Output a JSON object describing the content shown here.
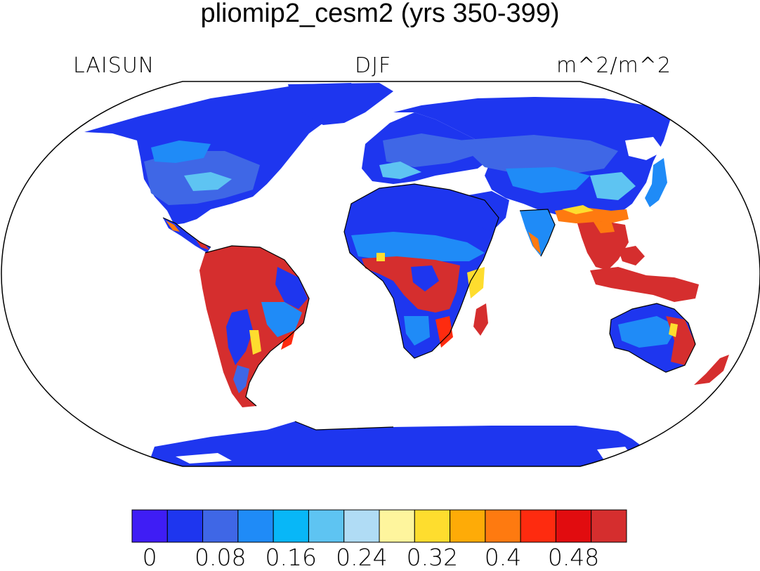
{
  "title": "pliomip2_cesm2 (yrs 350-399)",
  "left_label": "LAISUN",
  "center_label": "DJF",
  "right_label": "m^2/m^2",
  "colorbar": {
    "colors": [
      "#3f1df5",
      "#1e36ef",
      "#3f67e6",
      "#1f8bf7",
      "#08b7f7",
      "#5ec4f2",
      "#b0dcf5",
      "#fef59d",
      "#fedd2e",
      "#feab07",
      "#fe7a10",
      "#fe2b0f",
      "#e10c0f",
      "#d52e2e"
    ],
    "tick_labels": [
      "0",
      "0.08",
      "0.16",
      "0.24",
      "0.32",
      "0.4",
      "0.48"
    ]
  },
  "map": {
    "projection": "Robinson",
    "ocean_color": "#ffffff",
    "land_base_color": "#1e36ef",
    "high_color": "#d52e2e"
  }
}
